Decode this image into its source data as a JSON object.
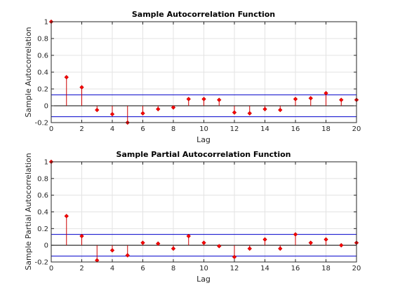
{
  "colors": {
    "stem": "#cc0000",
    "marker": "#ff0000",
    "bound": "#0000cc",
    "zero_line": "#000000",
    "grid": "#e3e3e3",
    "axis": "#262626",
    "background": "#ffffff"
  },
  "chart_data": [
    {
      "type": "stem",
      "title": "Sample Autocorrelation Function",
      "xlabel": "Lag",
      "ylabel": "Sample Autocorrelation",
      "xlim": [
        0,
        20
      ],
      "ylim": [
        -0.2,
        1
      ],
      "xticks": [
        0,
        2,
        4,
        6,
        8,
        10,
        12,
        14,
        16,
        18,
        20
      ],
      "yticks": [
        -0.2,
        0,
        0.2,
        0.4,
        0.6,
        0.8,
        1
      ],
      "grid": true,
      "confidence_bounds": [
        0.13,
        -0.13
      ],
      "lags": [
        0,
        1,
        2,
        3,
        4,
        5,
        6,
        7,
        8,
        9,
        10,
        11,
        12,
        13,
        14,
        15,
        16,
        17,
        18,
        19,
        20
      ],
      "values": [
        1.0,
        0.34,
        0.22,
        -0.05,
        -0.1,
        -0.2,
        -0.09,
        -0.04,
        -0.02,
        0.08,
        0.08,
        0.07,
        -0.08,
        -0.09,
        -0.04,
        -0.05,
        0.08,
        0.09,
        0.15,
        0.07,
        0.07
      ]
    },
    {
      "type": "stem",
      "title": "Sample Partial Autocorrelation Function",
      "xlabel": "Lag",
      "ylabel": "Sample Partial Autocorrelation",
      "xlim": [
        0,
        20
      ],
      "ylim": [
        -0.2,
        1
      ],
      "xticks": [
        0,
        2,
        4,
        6,
        8,
        10,
        12,
        14,
        16,
        18,
        20
      ],
      "yticks": [
        -0.2,
        0,
        0.2,
        0.4,
        0.6,
        0.8,
        1
      ],
      "grid": true,
      "confidence_bounds": [
        0.13,
        -0.13
      ],
      "lags": [
        0,
        1,
        2,
        3,
        4,
        5,
        6,
        7,
        8,
        9,
        10,
        11,
        12,
        13,
        14,
        15,
        16,
        17,
        18,
        19,
        20
      ],
      "values": [
        1.0,
        0.35,
        0.11,
        -0.18,
        -0.06,
        -0.12,
        0.03,
        0.02,
        -0.04,
        0.11,
        0.03,
        -0.01,
        -0.14,
        -0.04,
        0.07,
        -0.04,
        0.13,
        0.03,
        0.07,
        0.0,
        0.03
      ]
    }
  ]
}
